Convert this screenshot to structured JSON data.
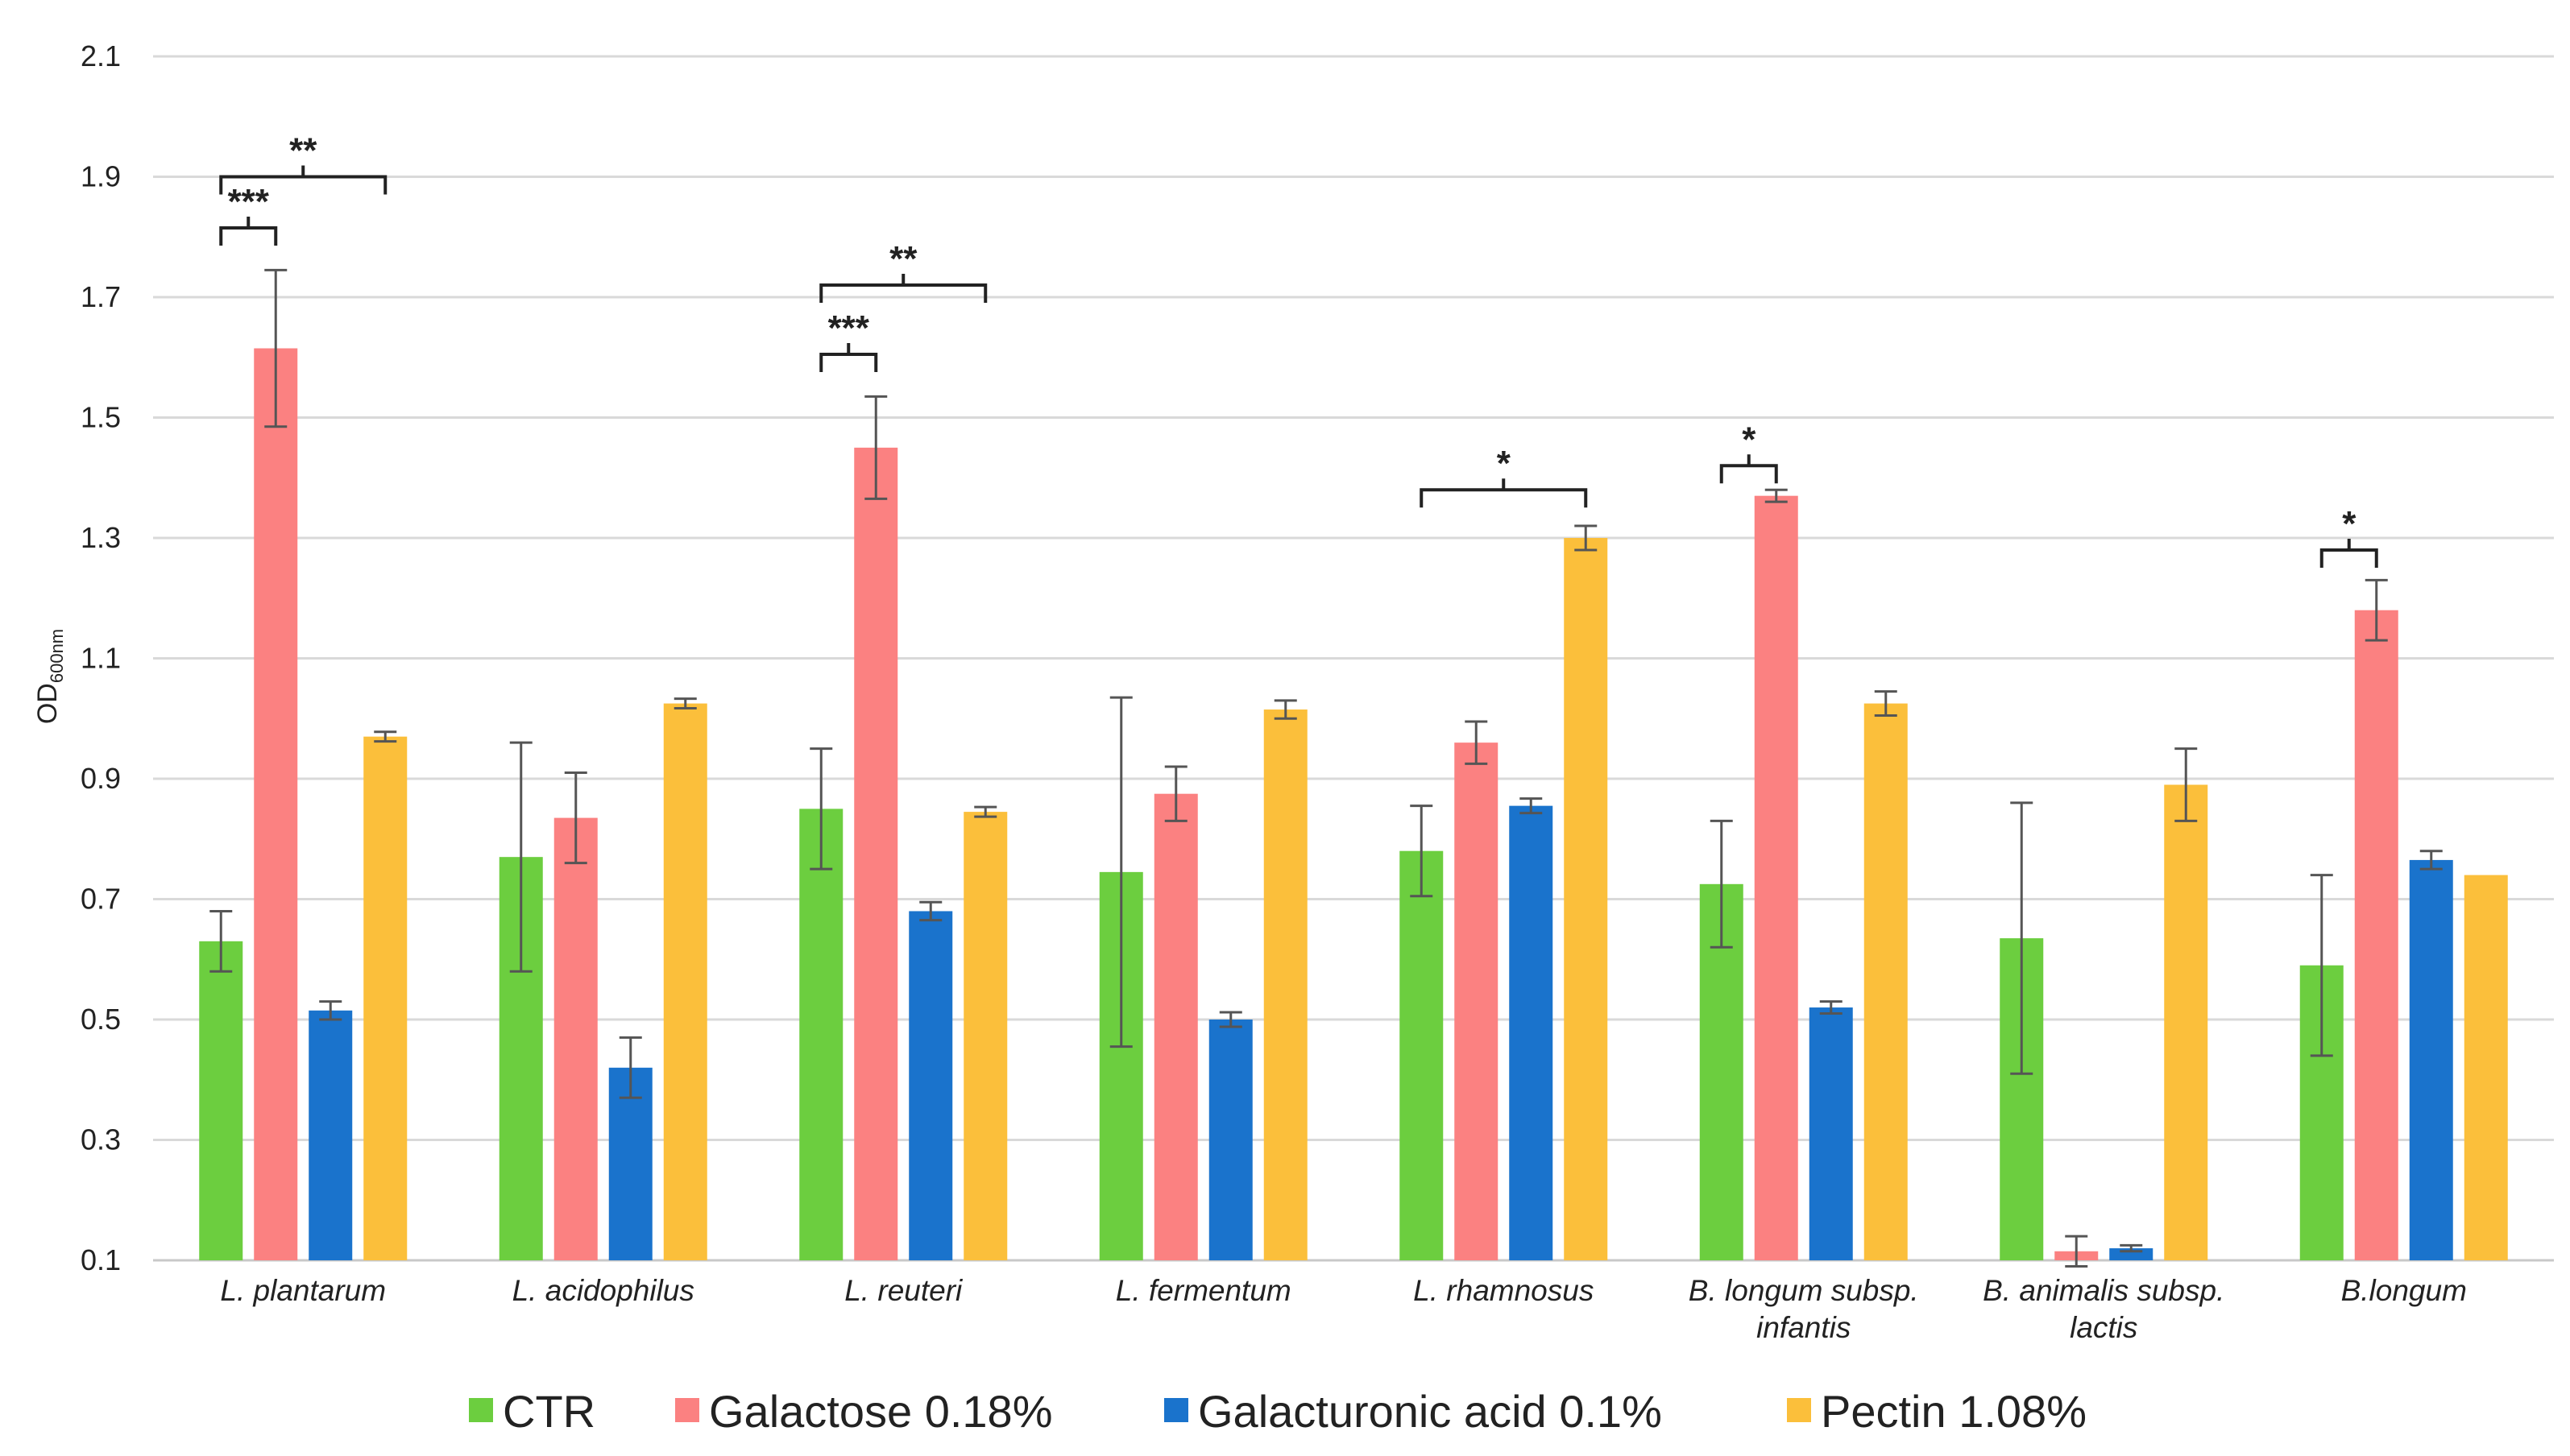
{
  "chart_data": {
    "type": "bar",
    "title": "",
    "xlabel": "",
    "ylabel": "OD",
    "ylabel_subscript": "600nm",
    "ylim": [
      0.1,
      2.1
    ],
    "yticks": [
      0.1,
      0.3,
      0.5,
      0.7,
      0.9,
      1.1,
      1.3,
      1.5,
      1.7,
      1.9,
      2.1
    ],
    "ytick_labels": [
      "0.1",
      "0.3",
      "0.5",
      "0.7",
      "0.9",
      "1.1",
      "1.3",
      "1.5",
      "1.7",
      "1.9",
      "2.1"
    ],
    "grid": true,
    "legend_position": "bottom",
    "categories": [
      [
        "L. plantarum"
      ],
      [
        "L. acidophilus"
      ],
      [
        "L. reuteri"
      ],
      [
        "L. fermentum"
      ],
      [
        "L. rhamnosus"
      ],
      [
        "B. longum subsp.",
        "infantis"
      ],
      [
        "B. animalis subsp.",
        "lactis"
      ],
      [
        "B.longum"
      ]
    ],
    "series": [
      {
        "name": "CTR",
        "color": "#6cce3f",
        "values": [
          0.63,
          0.77,
          0.85,
          0.745,
          0.78,
          0.725,
          0.635,
          0.59
        ],
        "errors": [
          0.05,
          0.19,
          0.1,
          0.29,
          0.075,
          0.105,
          0.225,
          0.15
        ]
      },
      {
        "name": "Galactose 0.18%",
        "color": "#fb8181",
        "values": [
          1.615,
          0.835,
          1.45,
          0.875,
          0.96,
          1.37,
          0.115,
          1.18
        ],
        "errors": [
          0.13,
          0.075,
          0.085,
          0.045,
          0.035,
          0.01,
          0.025,
          0.05
        ]
      },
      {
        "name": "Galacturonic acid 0.1%",
        "color": "#1a73cc",
        "values": [
          0.515,
          0.42,
          0.68,
          0.5,
          0.855,
          0.52,
          0.12,
          0.765
        ],
        "errors": [
          0.015,
          0.05,
          0.015,
          0.012,
          0.012,
          0.01,
          0.005,
          0.015
        ]
      },
      {
        "name": "Pectin 1.08%",
        "color": "#fbbf3b",
        "values": [
          0.97,
          1.025,
          0.845,
          1.015,
          1.3,
          1.025,
          0.89,
          0.74
        ],
        "errors": [
          0.008,
          0.008,
          0.008,
          0.015,
          0.02,
          0.02,
          0.06,
          0.0
        ]
      }
    ],
    "annotations": [
      {
        "category": 0,
        "from_series": 0,
        "to_series": 1,
        "y": 1.815,
        "text": "***"
      },
      {
        "category": 0,
        "from_series": 0,
        "to_series": 3,
        "y": 1.9,
        "text": "**"
      },
      {
        "category": 2,
        "from_series": 0,
        "to_series": 1,
        "y": 1.605,
        "text": "***"
      },
      {
        "category": 2,
        "from_series": 0,
        "to_series": 3,
        "y": 1.72,
        "text": "**"
      },
      {
        "category": 4,
        "from_series": 0,
        "to_series": 3,
        "y": 1.38,
        "text": "*"
      },
      {
        "category": 5,
        "from_series": 0,
        "to_series": 1,
        "y": 1.42,
        "text": "*"
      },
      {
        "category": 7,
        "from_series": 0,
        "to_series": 1,
        "y": 1.28,
        "text": "*"
      }
    ]
  }
}
